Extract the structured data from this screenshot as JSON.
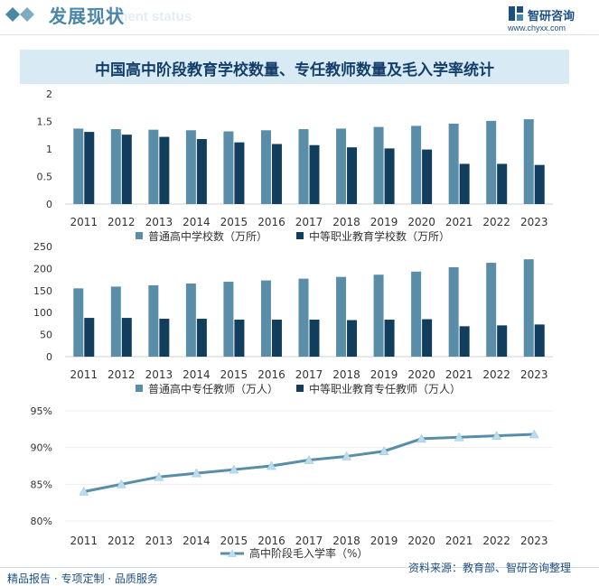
{
  "header": {
    "title": "发展现状",
    "subtitle": "ment status",
    "brand_name": "智研咨询",
    "brand_url": "www.chyxx.com"
  },
  "chart_title": "中国高中阶段教育学校数量、专任教师数量及毛入学率统计",
  "colors": {
    "light": "#5a8ea8",
    "dark": "#113e5c",
    "line": "#5a8ea8",
    "marker": "#b9dcef",
    "axis_text": "#333333"
  },
  "chart_data": [
    {
      "type": "bar",
      "categories": [
        "2011",
        "2012",
        "2013",
        "2014",
        "2015",
        "2016",
        "2017",
        "2018",
        "2019",
        "2020",
        "2021",
        "2022",
        "2023"
      ],
      "series": [
        {
          "name": "普通高中学校数（万所）",
          "values": [
            1.37,
            1.36,
            1.35,
            1.34,
            1.32,
            1.34,
            1.36,
            1.37,
            1.4,
            1.42,
            1.46,
            1.51,
            1.54
          ]
        },
        {
          "name": "中等职业教育学校数（万所）",
          "values": [
            1.31,
            1.26,
            1.22,
            1.18,
            1.12,
            1.09,
            1.07,
            1.03,
            1.01,
            0.99,
            0.73,
            0.73,
            0.71
          ]
        }
      ],
      "yticks": [
        "0",
        "0.5",
        "1",
        "1.5",
        "2"
      ],
      "ylim": [
        0,
        2
      ]
    },
    {
      "type": "bar",
      "categories": [
        "2011",
        "2012",
        "2013",
        "2014",
        "2015",
        "2016",
        "2017",
        "2018",
        "2019",
        "2020",
        "2021",
        "2022",
        "2023"
      ],
      "series": [
        {
          "name": "普通高中专任教师（万人）",
          "values": [
            155,
            159,
            162,
            166,
            170,
            173,
            177,
            181,
            186,
            193,
            203,
            213,
            221
          ]
        },
        {
          "name": "中等职业教育专任教师（万人）",
          "values": [
            88,
            88,
            86,
            86,
            84,
            84,
            84,
            83,
            84,
            85,
            69,
            71,
            73
          ]
        }
      ],
      "yticks": [
        "0",
        "25",
        "50",
        "75",
        "100",
        "125",
        "150",
        "175",
        "200",
        "225",
        "250"
      ],
      "ylim": [
        0,
        250
      ]
    },
    {
      "type": "line",
      "categories": [
        "2011",
        "2012",
        "2013",
        "2014",
        "2015",
        "2016",
        "2017",
        "2018",
        "2019",
        "2020",
        "2021",
        "2022",
        "2023"
      ],
      "series": [
        {
          "name": "高中阶段毛入学率（%）",
          "values": [
            84.0,
            85.0,
            86.0,
            86.5,
            87.0,
            87.5,
            88.3,
            88.8,
            89.5,
            91.2,
            91.4,
            91.6,
            91.8
          ]
        }
      ],
      "yticks": [
        "80%",
        "85%",
        "90%",
        "95%"
      ],
      "ylim": [
        80,
        95
      ]
    }
  ],
  "footer": {
    "left": "精品报告 · 专项定制 · 品质服务",
    "source": "资料来源：教育部、智研咨询整理"
  }
}
